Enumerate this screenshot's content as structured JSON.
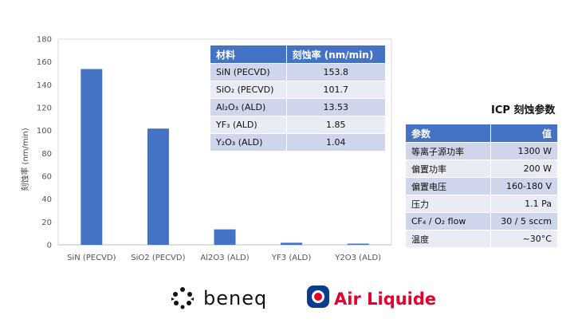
{
  "chart_data": {
    "type": "bar",
    "categories": [
      "SiN (PECVD)",
      "SiO2 (PECVD)",
      "Al2O3 (ALD)",
      "YF3 (ALD)",
      "Y2O3 (ALD)"
    ],
    "values": [
      153.8,
      101.7,
      13.53,
      1.85,
      1.04
    ],
    "ylabel": "刻蚀率 (nm/min)",
    "xlabel": "",
    "ylim": [
      0,
      180
    ],
    "yticks": [
      0,
      20,
      40,
      60,
      80,
      100,
      120,
      140,
      160,
      180
    ],
    "grid": false,
    "bar_color": "#4472c4",
    "axis_color": "#d9d9d9"
  },
  "etch_table": {
    "headers": [
      "材料",
      "刻蚀率 (nm/min)"
    ],
    "rows": [
      {
        "material": "SiN (PECVD)",
        "rate": "153.8"
      },
      {
        "material": "SiO₂ (PECVD)",
        "rate": "101.7"
      },
      {
        "material": "Al₂O₃ (ALD)",
        "rate": "13.53"
      },
      {
        "material": "YF₃ (ALD)",
        "rate": "1.85"
      },
      {
        "material": "Y₂O₃ (ALD)",
        "rate": "1.04"
      }
    ],
    "header_color": "#4472c4"
  },
  "icp": {
    "title": "ICP 刻蚀参数",
    "headers": [
      "参数",
      "值"
    ],
    "rows": [
      {
        "param": "等离子源功率",
        "value": "1300 W"
      },
      {
        "param": "偏置功率",
        "value": "200 W"
      },
      {
        "param": "偏置电压",
        "value": "160-180 V"
      },
      {
        "param": "压力",
        "value": "1.1 Pa"
      },
      {
        "param": "CF₄ / O₂ flow",
        "value": "30 / 5 sccm"
      },
      {
        "param": "温度",
        "value": "~30°C"
      }
    ]
  },
  "logos": {
    "beneq": "beneq",
    "air_liquide": "Air Liquide",
    "air_liquide_color": "#e4002b",
    "air_liquide_blue": "#0a3d8f"
  }
}
